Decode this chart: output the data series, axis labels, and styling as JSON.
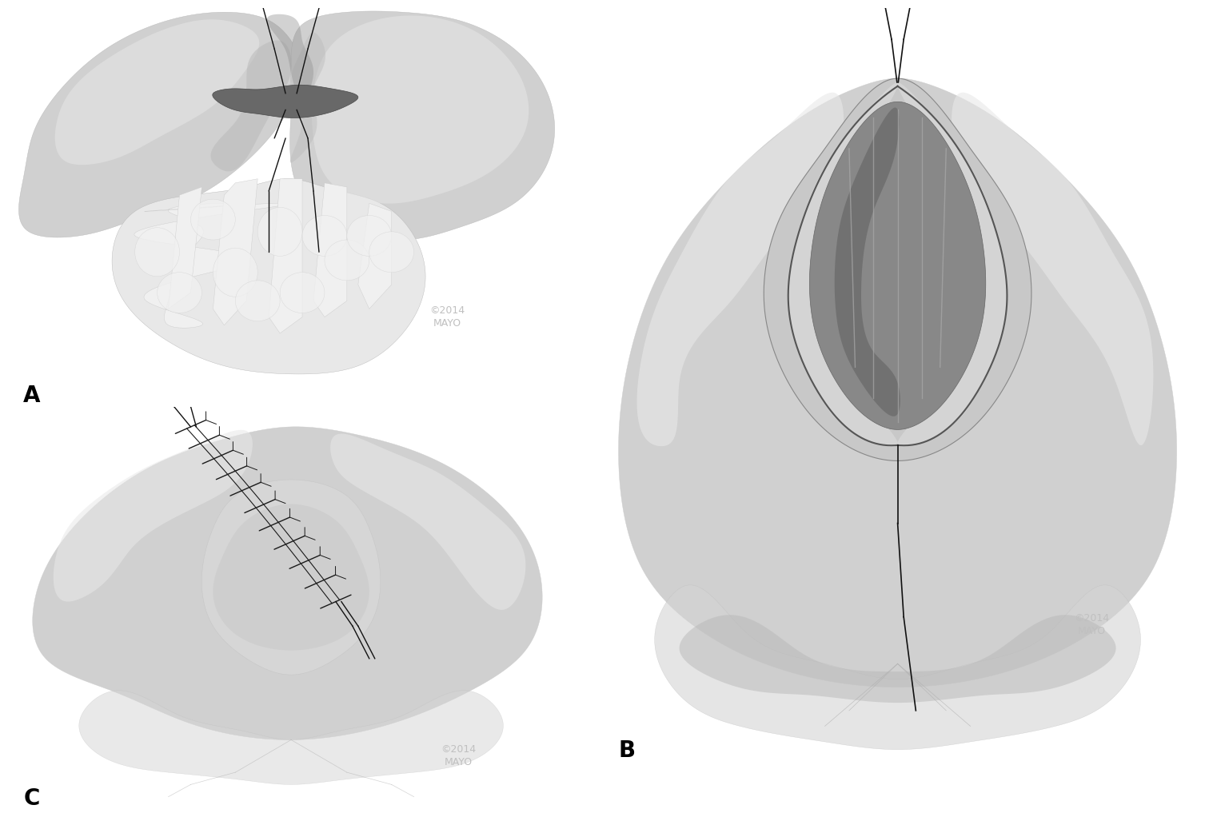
{
  "figure_size": [
    15.17,
    10.17
  ],
  "dpi": 100,
  "background_color": "#ffffff",
  "label_A": "A",
  "label_B": "B",
  "label_C": "C",
  "label_fontsize": 20,
  "label_color": "#000000",
  "copyright_text": "©2014\nMAYO",
  "copyright_color": "#c0c0c0",
  "copyright_fontsize": 9,
  "c_light": "#d0d0d0",
  "c_mid": "#b8b8b8",
  "c_dark": "#909090",
  "c_darker": "#686868",
  "c_darkest": "#484848",
  "c_white": "#f0f0f0",
  "c_highlight": "#e8e8e8",
  "c_shadow": "#a0a0a0",
  "c_suture": "#1a1a1a",
  "c_interior": "#787878",
  "c_interior_dark": "#505050"
}
